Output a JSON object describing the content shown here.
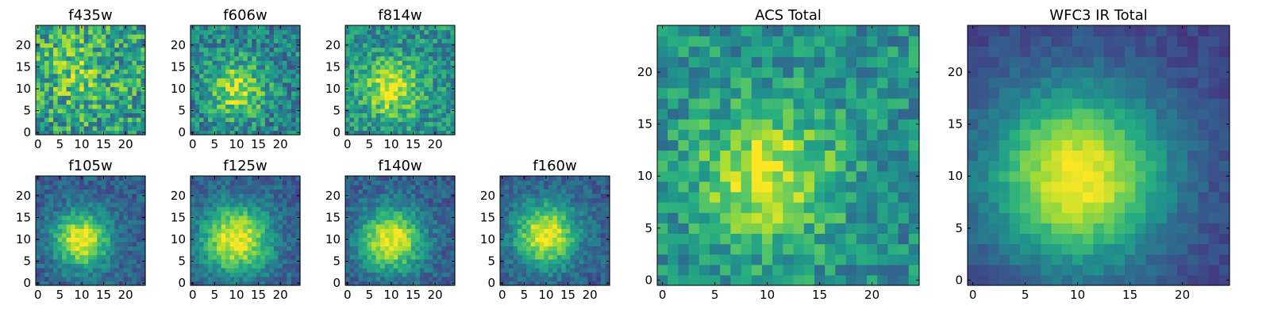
{
  "chart_data": {
    "type": "heatmap",
    "colormap": "viridis",
    "grid": false,
    "panels": [
      {
        "title": "f435w",
        "x_ticks": [
          "0",
          "5",
          "10",
          "15",
          "20"
        ],
        "y_ticks": [
          "0",
          "5",
          "10",
          "15",
          "20"
        ],
        "xlim": [
          0,
          25
        ],
        "ylim": [
          0,
          25
        ],
        "peak": [
          9,
          14
        ],
        "sigma": 6,
        "floor": 0.55,
        "amp": 0.2,
        "noise": 0.28,
        "seed": 11
      },
      {
        "title": "f606w",
        "x_ticks": [
          "0",
          "5",
          "10",
          "15",
          "20"
        ],
        "y_ticks": [
          "0",
          "5",
          "10",
          "15",
          "20"
        ],
        "xlim": [
          0,
          25
        ],
        "ylim": [
          0,
          25
        ],
        "peak": [
          10,
          10
        ],
        "sigma": 4.5,
        "floor": 0.45,
        "amp": 0.45,
        "noise": 0.22,
        "seed": 23
      },
      {
        "title": "f814w",
        "x_ticks": [
          "0",
          "5",
          "10",
          "15",
          "20"
        ],
        "y_ticks": [
          "0",
          "5",
          "10",
          "15",
          "20"
        ],
        "xlim": [
          0,
          25
        ],
        "ylim": [
          0,
          25
        ],
        "peak": [
          10,
          10
        ],
        "sigma": 4.5,
        "floor": 0.5,
        "amp": 0.45,
        "noise": 0.2,
        "seed": 37
      },
      {
        "title": "f105w",
        "x_ticks": [
          "0",
          "5",
          "10",
          "15",
          "20"
        ],
        "y_ticks": [
          "0",
          "5",
          "10",
          "15",
          "20"
        ],
        "xlim": [
          0,
          25
        ],
        "ylim": [
          0,
          25
        ],
        "peak": [
          10,
          10
        ],
        "sigma": 4.5,
        "floor": 0.3,
        "amp": 0.7,
        "noise": 0.12,
        "seed": 41
      },
      {
        "title": "f125w",
        "x_ticks": [
          "0",
          "5",
          "10",
          "15",
          "20"
        ],
        "y_ticks": [
          "0",
          "5",
          "10",
          "15",
          "20"
        ],
        "xlim": [
          0,
          25
        ],
        "ylim": [
          0,
          25
        ],
        "peak": [
          10,
          10
        ],
        "sigma": 5.5,
        "floor": 0.3,
        "amp": 0.7,
        "noise": 0.12,
        "seed": 53
      },
      {
        "title": "f140w",
        "x_ticks": [
          "0",
          "5",
          "10",
          "15",
          "20"
        ],
        "y_ticks": [
          "0",
          "5",
          "10",
          "15",
          "20"
        ],
        "xlim": [
          0,
          25
        ],
        "ylim": [
          0,
          25
        ],
        "peak": [
          10,
          10
        ],
        "sigma": 5,
        "floor": 0.3,
        "amp": 0.7,
        "noise": 0.12,
        "seed": 67
      },
      {
        "title": "f160w",
        "x_ticks": [
          "0",
          "5",
          "10",
          "15",
          "20"
        ],
        "y_ticks": [
          "0",
          "5",
          "10",
          "15",
          "20"
        ],
        "xlim": [
          0,
          25
        ],
        "ylim": [
          0,
          25
        ],
        "peak": [
          10,
          11
        ],
        "sigma": 5,
        "floor": 0.3,
        "amp": 0.7,
        "noise": 0.12,
        "seed": 79
      },
      {
        "title": "ACS Total",
        "x_ticks": [
          "0",
          "5",
          "10",
          "15",
          "20"
        ],
        "y_ticks": [
          "0",
          "5",
          "10",
          "15",
          "20"
        ],
        "xlim": [
          0,
          25
        ],
        "ylim": [
          0,
          25
        ],
        "peak": [
          10,
          10
        ],
        "sigma": 4.5,
        "floor": 0.5,
        "amp": 0.45,
        "noise": 0.18,
        "seed": 83
      },
      {
        "title": "WFC3 IR Total",
        "x_ticks": [
          "0",
          "5",
          "10",
          "15",
          "20"
        ],
        "y_ticks": [
          "0",
          "5",
          "10",
          "15",
          "20"
        ],
        "xlim": [
          0,
          25
        ],
        "ylim": [
          0,
          25
        ],
        "peak": [
          10,
          10
        ],
        "sigma": 6,
        "floor": 0.2,
        "amp": 0.8,
        "noise": 0.06,
        "seed": 97
      }
    ]
  }
}
